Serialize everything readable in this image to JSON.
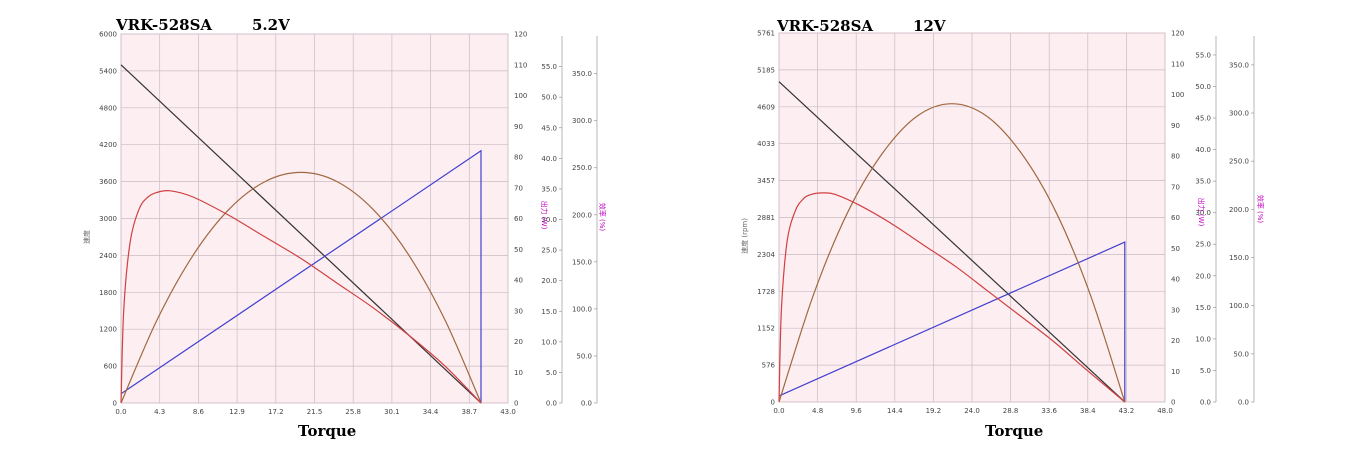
{
  "chart_data": [
    {
      "type": "line",
      "title": "VRK-528SA",
      "voltage": "5.2V",
      "xlabel": "Torque",
      "x_ticks": [
        "0.0",
        "4.3",
        "8.6",
        "12.9",
        "17.2",
        "21.5",
        "25.8",
        "30.1",
        "34.4",
        "38.7",
        "43.0"
      ],
      "xlim": [
        0,
        43.0
      ],
      "axes": [
        {
          "name": "speed",
          "label": "速度",
          "ticks": [
            "0",
            "600",
            "1200",
            "1800",
            "2400",
            "3000",
            "3600",
            "4200",
            "4800",
            "5400",
            "6000"
          ],
          "range": [
            0,
            6000
          ]
        },
        {
          "name": "current",
          "label": "",
          "ticks": [
            "0",
            "10",
            "20",
            "30",
            "40",
            "50",
            "60",
            "70",
            "80",
            "90",
            "100",
            "110",
            "120"
          ],
          "range": [
            0,
            120
          ]
        },
        {
          "name": "power",
          "label": "出力 (W)",
          "ticks": [
            "0.0",
            "5.0",
            "10.0",
            "15.0",
            "20.0",
            "25.0",
            "30.0",
            "35.0",
            "40.0",
            "45.0",
            "50.0",
            "55.0"
          ],
          "range": [
            0,
            60
          ]
        },
        {
          "name": "efficiency",
          "label": "效率 (%)",
          "ticks": [
            "0.0",
            "50.0",
            "100.0",
            "150.0",
            "200.0",
            "250.0",
            "300.0",
            "350.0"
          ],
          "range": [
            0,
            390
          ]
        }
      ],
      "series": [
        {
          "name": "speed",
          "axis": "speed",
          "color": "#333333",
          "x": [
            0,
            40
          ],
          "y": [
            5500,
            0
          ]
        },
        {
          "name": "current",
          "axis": "current",
          "color": "#4040d0",
          "x": [
            0,
            40,
            40
          ],
          "y": [
            3,
            82,
            0
          ]
        },
        {
          "name": "output",
          "axis": "current",
          "color": "#a06840",
          "x": [
            0,
            4,
            8,
            12,
            16,
            20,
            24,
            28,
            32,
            36,
            40
          ],
          "y": [
            0,
            27,
            48,
            63,
            72,
            75,
            72,
            63,
            48,
            27,
            0
          ]
        },
        {
          "name": "efficiency",
          "axis": "current",
          "color": "#d04040",
          "x": [
            0,
            0.3,
            1,
            2,
            3,
            4,
            5.5,
            8,
            12,
            16,
            20,
            24,
            28,
            32,
            36,
            40
          ],
          "y": [
            0,
            30,
            52,
            63,
            67,
            68.5,
            69,
            67,
            61,
            54,
            47,
            39,
            31,
            22,
            12,
            0
          ]
        }
      ]
    },
    {
      "type": "line",
      "title": "VRK-528SA",
      "voltage": "12V",
      "xlabel": "Torque",
      "x_ticks": [
        "0.0",
        "4.8",
        "9.6",
        "14.4",
        "19.2",
        "24.0",
        "28.8",
        "33.6",
        "38.4",
        "43.2",
        "48.0"
      ],
      "xlim": [
        0,
        48.0
      ],
      "axes": [
        {
          "name": "speed",
          "label": "速度 (rpm)",
          "ticks": [
            "0",
            "576",
            "1152",
            "1728",
            "2304",
            "2881",
            "3457",
            "4033",
            "4609",
            "5185",
            "5761"
          ],
          "range": [
            0,
            5761
          ]
        },
        {
          "name": "current",
          "label": "",
          "ticks": [
            "0",
            "10",
            "20",
            "30",
            "40",
            "50",
            "60",
            "70",
            "80",
            "90",
            "100",
            "110",
            "120"
          ],
          "range": [
            0,
            120
          ]
        },
        {
          "name": "power",
          "label": "出力 (W)",
          "ticks": [
            "0.0",
            "5.0",
            "10.0",
            "15.0",
            "20.0",
            "25.0",
            "30.0",
            "35.0",
            "40.0",
            "45.0",
            "50.0",
            "55.0"
          ],
          "range": [
            0,
            58
          ]
        },
        {
          "name": "efficiency",
          "label": "效率 (%)",
          "ticks": [
            "0.0",
            "50.0",
            "100.0",
            "150.0",
            "200.0",
            "250.0",
            "300.0",
            "350.0"
          ],
          "range": [
            0,
            380
          ]
        }
      ],
      "series": [
        {
          "name": "speed",
          "axis": "speed",
          "color": "#333333",
          "x": [
            0,
            43
          ],
          "y": [
            5000,
            0
          ]
        },
        {
          "name": "current",
          "axis": "current",
          "color": "#4040d0",
          "x": [
            0,
            43,
            43
          ],
          "y": [
            2,
            52,
            0
          ]
        },
        {
          "name": "output",
          "axis": "current",
          "color": "#a06840",
          "x": [
            0,
            4.3,
            8.6,
            12.9,
            17.2,
            21.5,
            25.8,
            30.1,
            34.4,
            38.7,
            43
          ],
          "y": [
            0,
            35,
            62,
            81,
            93,
            97,
            93,
            81,
            62,
            35,
            0
          ]
        },
        {
          "name": "efficiency",
          "axis": "current",
          "color": "#d04040",
          "x": [
            0,
            0.3,
            1,
            2,
            3,
            4,
            5.5,
            7,
            10,
            14,
            18,
            22,
            26,
            30,
            34,
            38,
            43
          ],
          "y": [
            0,
            30,
            52,
            62,
            66,
            67.5,
            68,
            67.5,
            64,
            58,
            51,
            44,
            36,
            28,
            20,
            11,
            0
          ]
        }
      ]
    }
  ]
}
